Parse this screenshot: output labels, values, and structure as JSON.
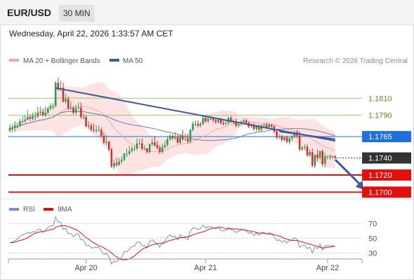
{
  "header": {
    "symbol": "EUR/USD",
    "timeframe": "30 MIN",
    "datetime": "Wednesday, April 22, 2026 1:33:57 AM CET"
  },
  "legend": {
    "ma20_bb": "MA 20 + Bollinger Bands",
    "ma50": "MA 50",
    "credit": "Research © 2026 Trading Central",
    "rsi": "RSI",
    "rsi_ma": "9MA"
  },
  "colors": {
    "bb_fill": "#fde3e3",
    "ma20": "#f4a7a7",
    "ma50": "#6b7aa8",
    "trendline": "#3a5a9e",
    "resistance": "#9dc36b",
    "support": "#e01010",
    "current": "#333333",
    "ma50_tag": "#1f6fe0",
    "rsi": "#6f8fd6",
    "rsi_ma": "#e01010",
    "up_candle": "#2e9e4e",
    "down_candle": "#d33030"
  },
  "chart_data": [
    {
      "type": "candlestick",
      "x_ticks": [
        "Apr 20",
        "Apr 21",
        "Apr 22"
      ],
      "ylim": [
        1.1693,
        1.1843
      ],
      "open": [
        1.1772,
        1.1775,
        1.1775,
        1.1778,
        1.1778,
        1.1783,
        1.1783,
        1.1785,
        1.1788,
        1.1786,
        1.1789,
        1.1789,
        1.1793,
        1.1794,
        1.179,
        1.1793,
        1.1798,
        1.1801,
        1.1801,
        1.1828,
        1.182,
        1.1822,
        1.1806,
        1.1809,
        1.1798,
        1.1799,
        1.1793,
        1.1798,
        1.1799,
        1.1788,
        1.1788,
        1.1777,
        1.1778,
        1.1773,
        1.1772,
        1.1773,
        1.1773,
        1.1766,
        1.1758,
        1.1759,
        1.175,
        1.173,
        1.1734,
        1.1732,
        1.1736,
        1.1738,
        1.1745,
        1.1745,
        1.1748,
        1.1751,
        1.1751,
        1.1757,
        1.1757,
        1.1751,
        1.1751,
        1.1747,
        1.1756,
        1.1758,
        1.1755,
        1.1752,
        1.1747,
        1.1753,
        1.1755,
        1.1762,
        1.1766,
        1.1763,
        1.1764,
        1.1758,
        1.1766,
        1.1762,
        1.1762,
        1.1759,
        1.1773,
        1.178,
        1.178,
        1.1778,
        1.178,
        1.1787,
        1.1783,
        1.1786,
        1.1786,
        1.1784,
        1.1782,
        1.1786,
        1.1781,
        1.178,
        1.1781,
        1.1787,
        1.1783,
        1.1782,
        1.1778,
        1.178,
        1.1782,
        1.1784,
        1.1781,
        1.1777,
        1.1779,
        1.1774,
        1.1777,
        1.1773,
        1.1778,
        1.1779,
        1.1776,
        1.1779,
        1.1777,
        1.1771,
        1.1764,
        1.1765,
        1.1761,
        1.1764,
        1.1759,
        1.1763,
        1.1765,
        1.177,
        1.1766,
        1.175,
        1.1752,
        1.1753,
        1.1743,
        1.1747,
        1.1731,
        1.1744,
        1.174,
        1.1748,
        1.1733,
        1.1742,
        1.1742,
        1.1741,
        1.1742
      ],
      "high": [
        1.1779,
        1.1779,
        1.1783,
        1.1781,
        1.1786,
        1.1789,
        1.179,
        1.1796,
        1.1791,
        1.1793,
        1.1794,
        1.18,
        1.18,
        1.1798,
        1.18,
        1.18,
        1.1804,
        1.1804,
        1.183,
        1.1834,
        1.183,
        1.1828,
        1.1815,
        1.1812,
        1.1806,
        1.1801,
        1.1802,
        1.1805,
        1.1805,
        1.1792,
        1.179,
        1.1783,
        1.1781,
        1.178,
        1.1778,
        1.1778,
        1.1776,
        1.177,
        1.1767,
        1.176,
        1.1752,
        1.1738,
        1.174,
        1.174,
        1.1742,
        1.1746,
        1.1751,
        1.1754,
        1.1754,
        1.1754,
        1.1763,
        1.1762,
        1.1763,
        1.1755,
        1.1752,
        1.1757,
        1.1763,
        1.1765,
        1.176,
        1.1755,
        1.1757,
        1.176,
        1.1766,
        1.1768,
        1.1768,
        1.177,
        1.1767,
        1.1767,
        1.1773,
        1.1768,
        1.1768,
        1.1774,
        1.1783,
        1.1784,
        1.1784,
        1.1782,
        1.1789,
        1.1789,
        1.1788,
        1.179,
        1.1787,
        1.1786,
        1.1787,
        1.1787,
        1.1785,
        1.1784,
        1.1788,
        1.1789,
        1.1785,
        1.1786,
        1.178,
        1.1784,
        1.1786,
        1.1786,
        1.1783,
        1.1781,
        1.1781,
        1.1779,
        1.1779,
        1.1779,
        1.1781,
        1.1782,
        1.1781,
        1.178,
        1.1778,
        1.1773,
        1.1768,
        1.1767,
        1.1765,
        1.1766,
        1.1764,
        1.1767,
        1.1771,
        1.1773,
        1.1771,
        1.1754,
        1.1756,
        1.1756,
        1.175,
        1.1751,
        1.1744,
        1.175,
        1.1749,
        1.175,
        1.1746,
        1.1743,
        1.1744,
        1.1743,
        1.1743
      ],
      "low": [
        1.177,
        1.1771,
        1.1771,
        1.1774,
        1.1776,
        1.178,
        1.1781,
        1.1784,
        1.1783,
        1.1784,
        1.1784,
        1.1787,
        1.179,
        1.1789,
        1.1788,
        1.1791,
        1.1796,
        1.1797,
        1.1799,
        1.1818,
        1.1818,
        1.1805,
        1.1803,
        1.1796,
        1.1796,
        1.1791,
        1.1791,
        1.1797,
        1.1786,
        1.1785,
        1.1776,
        1.1774,
        1.1771,
        1.177,
        1.1769,
        1.1771,
        1.1764,
        1.1756,
        1.1755,
        1.1748,
        1.1728,
        1.1727,
        1.173,
        1.1731,
        1.1733,
        1.1736,
        1.1741,
        1.1743,
        1.1746,
        1.1748,
        1.1749,
        1.1755,
        1.1749,
        1.1749,
        1.1745,
        1.1745,
        1.1754,
        1.1753,
        1.175,
        1.1745,
        1.1745,
        1.1751,
        1.1753,
        1.176,
        1.1761,
        1.1761,
        1.1757,
        1.1756,
        1.176,
        1.176,
        1.1757,
        1.1757,
        1.1771,
        1.1777,
        1.1776,
        1.1776,
        1.1778,
        1.1781,
        1.1781,
        1.1784,
        1.1782,
        1.178,
        1.178,
        1.1779,
        1.1778,
        1.1778,
        1.1779,
        1.1781,
        1.178,
        1.1776,
        1.1776,
        1.1778,
        1.178,
        1.1779,
        1.1775,
        1.1775,
        1.1772,
        1.1771,
        1.1771,
        1.1771,
        1.1776,
        1.1774,
        1.1774,
        1.1775,
        1.1769,
        1.1762,
        1.1762,
        1.1759,
        1.1759,
        1.1757,
        1.1756,
        1.176,
        1.1763,
        1.1763,
        1.1748,
        1.1748,
        1.1749,
        1.1741,
        1.1741,
        1.1729,
        1.1728,
        1.1736,
        1.1738,
        1.173,
        1.1729,
        1.1738,
        1.1738,
        1.1739,
        1.1739
      ],
      "close": [
        1.1775,
        1.1775,
        1.1778,
        1.1778,
        1.1783,
        1.1783,
        1.1785,
        1.1788,
        1.1786,
        1.1789,
        1.1789,
        1.1793,
        1.1794,
        1.179,
        1.1793,
        1.1798,
        1.1801,
        1.1801,
        1.1828,
        1.182,
        1.1822,
        1.1806,
        1.1809,
        1.1798,
        1.1799,
        1.1793,
        1.1798,
        1.1799,
        1.1788,
        1.1788,
        1.1777,
        1.1778,
        1.1773,
        1.1772,
        1.1773,
        1.1773,
        1.1766,
        1.1758,
        1.1759,
        1.175,
        1.173,
        1.1734,
        1.1732,
        1.1736,
        1.1738,
        1.1745,
        1.1745,
        1.1748,
        1.1751,
        1.1751,
        1.1757,
        1.1757,
        1.1751,
        1.1751,
        1.1747,
        1.1756,
        1.1758,
        1.1755,
        1.1752,
        1.1747,
        1.1753,
        1.1755,
        1.1762,
        1.1766,
        1.1763,
        1.1764,
        1.1758,
        1.1766,
        1.1762,
        1.1762,
        1.1759,
        1.1773,
        1.178,
        1.178,
        1.1778,
        1.178,
        1.1787,
        1.1783,
        1.1786,
        1.1786,
        1.1784,
        1.1782,
        1.1786,
        1.1781,
        1.178,
        1.1781,
        1.1787,
        1.1783,
        1.1782,
        1.1778,
        1.178,
        1.1782,
        1.1784,
        1.1781,
        1.1777,
        1.1779,
        1.1774,
        1.1777,
        1.1773,
        1.1778,
        1.1779,
        1.1776,
        1.1779,
        1.1777,
        1.1771,
        1.1764,
        1.1765,
        1.1761,
        1.1764,
        1.1759,
        1.1763,
        1.1765,
        1.177,
        1.1766,
        1.175,
        1.1752,
        1.1753,
        1.1743,
        1.1747,
        1.1731,
        1.1744,
        1.174,
        1.1748,
        1.1733,
        1.1742,
        1.1742,
        1.1741,
        1.1742,
        1.174
      ],
      "levels": [
        {
          "label": "1.1810",
          "value": 1.181,
          "kind": "resistance"
        },
        {
          "label": "1.1790",
          "value": 1.179,
          "kind": "resistance"
        },
        {
          "label": "1.1765",
          "value": 1.1765,
          "kind": "ma50"
        },
        {
          "label": "1.1740",
          "value": 1.174,
          "kind": "current"
        },
        {
          "label": "1.1720",
          "value": 1.172,
          "kind": "support"
        },
        {
          "label": "1.1700",
          "value": 1.17,
          "kind": "support"
        }
      ],
      "trendlines": [
        {
          "from_bar": 18,
          "from_value": 1.1822,
          "to_bar": 128,
          "to_value": 1.176
        },
        {
          "from_bar": 106,
          "from_value": 1.1771,
          "to_bar": 128,
          "to_value": 1.1762
        }
      ],
      "forecast_arrow": {
        "from_bar": 128,
        "from_value": 1.1738,
        "to_bar": 139,
        "to_value": 1.1703
      }
    },
    {
      "type": "line",
      "series": [
        {
          "name": "RSI",
          "values": [
            44,
            45,
            47,
            49,
            53,
            55,
            56,
            58,
            57,
            59,
            59,
            62,
            62,
            58,
            61,
            65,
            67,
            67,
            79,
            72,
            72,
            62,
            64,
            56,
            57,
            52,
            56,
            56,
            48,
            48,
            40,
            41,
            37,
            37,
            38,
            38,
            33,
            28,
            30,
            25,
            15,
            19,
            18,
            22,
            24,
            32,
            32,
            35,
            39,
            39,
            45,
            45,
            40,
            40,
            37,
            46,
            48,
            45,
            42,
            38,
            44,
            46,
            52,
            55,
            52,
            53,
            48,
            55,
            51,
            51,
            48,
            60,
            64,
            64,
            62,
            63,
            68,
            64,
            66,
            66,
            64,
            63,
            65,
            61,
            60,
            61,
            65,
            62,
            61,
            58,
            60,
            61,
            62,
            60,
            57,
            58,
            54,
            57,
            54,
            58,
            58,
            56,
            58,
            56,
            52,
            47,
            48,
            45,
            47,
            44,
            47,
            48,
            51,
            49,
            38,
            40,
            41,
            36,
            38,
            30,
            38,
            36,
            42,
            34,
            40,
            40,
            40,
            40,
            39
          ]
        },
        {
          "name": "9MA",
          "values": [
            44,
            44,
            45,
            46,
            47,
            48,
            49,
            51,
            53,
            55,
            57,
            58,
            59,
            59,
            60,
            61,
            62,
            62,
            65,
            66,
            67,
            67,
            67,
            66,
            65,
            63,
            62,
            60,
            57,
            54,
            51,
            49,
            46,
            44,
            42,
            40,
            39,
            37,
            35,
            33,
            30,
            27,
            25,
            22,
            21,
            21,
            21,
            22,
            24,
            26,
            29,
            32,
            35,
            37,
            38,
            40,
            41,
            42,
            43,
            43,
            43,
            44,
            46,
            47,
            48,
            49,
            50,
            51,
            51,
            52,
            52,
            53,
            55,
            56,
            57,
            58,
            59,
            60,
            62,
            63,
            64,
            64,
            65,
            65,
            64,
            63,
            63,
            63,
            63,
            63,
            62,
            62,
            62,
            61,
            60,
            60,
            59,
            58,
            57,
            57,
            57,
            56,
            56,
            56,
            55,
            54,
            53,
            52,
            50,
            49,
            48,
            47,
            47,
            47,
            46,
            45,
            44,
            43,
            42,
            41,
            40,
            39,
            38,
            37,
            37,
            38,
            38,
            39,
            39
          ]
        }
      ],
      "ylim": [
        20,
        80
      ],
      "yticks": [
        "70",
        "50",
        "30"
      ],
      "ytick_values": [
        70,
        50,
        30
      ]
    }
  ]
}
